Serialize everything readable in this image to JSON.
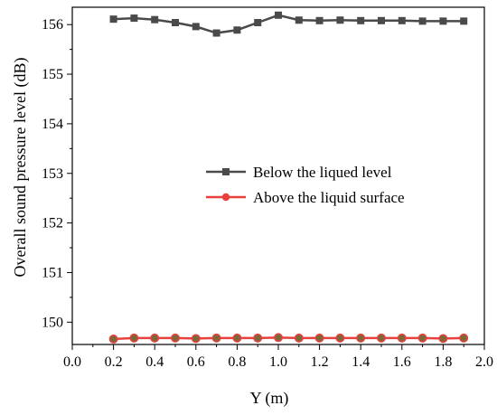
{
  "chart_data": {
    "type": "line",
    "title": "",
    "xlabel": "Y (m)",
    "ylabel": "Overall sound pressure level (dB)",
    "xlim": [
      0.0,
      2.0
    ],
    "ylim": [
      149.55,
      156.35
    ],
    "xticks": [
      "0.0",
      "0.2",
      "0.4",
      "0.6",
      "0.8",
      "1.0",
      "1.2",
      "1.4",
      "1.6",
      "1.8",
      "2.0"
    ],
    "yticks": [
      "150",
      "151",
      "152",
      "153",
      "154",
      "155",
      "156"
    ],
    "grid": false,
    "legend_position": "center-right",
    "series": [
      {
        "name": "Below the liqued level",
        "color": "#4a4a4a",
        "marker": "square",
        "x": [
          0.2,
          0.3,
          0.4,
          0.5,
          0.6,
          0.7,
          0.8,
          0.9,
          1.0,
          1.1,
          1.2,
          1.3,
          1.4,
          1.5,
          1.6,
          1.7,
          1.8,
          1.9
        ],
        "y": [
          156.11,
          156.13,
          156.1,
          156.04,
          155.96,
          155.83,
          155.89,
          156.04,
          156.19,
          156.09,
          156.08,
          156.09,
          156.08,
          156.08,
          156.08,
          156.07,
          156.07,
          156.07
        ]
      },
      {
        "name": "Above the liquid surface",
        "color": "#e8403c",
        "marker": "circle",
        "x": [
          0.2,
          0.3,
          0.4,
          0.5,
          0.6,
          0.7,
          0.8,
          0.9,
          1.0,
          1.1,
          1.2,
          1.3,
          1.4,
          1.5,
          1.6,
          1.7,
          1.8,
          1.9
        ],
        "y": [
          149.66,
          149.68,
          149.68,
          149.68,
          149.67,
          149.68,
          149.68,
          149.68,
          149.69,
          149.68,
          149.68,
          149.68,
          149.68,
          149.68,
          149.68,
          149.68,
          149.67,
          149.68
        ]
      }
    ]
  }
}
